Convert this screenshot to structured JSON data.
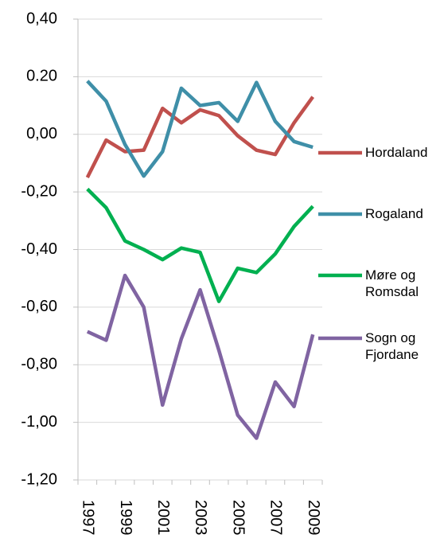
{
  "chart_data": {
    "type": "line",
    "categories": [
      "1997",
      null,
      "1999",
      null,
      "2001",
      null,
      "2003",
      null,
      "2005",
      null,
      "2007",
      null,
      "2009"
    ],
    "series": [
      {
        "name": "Hordaland",
        "color": "#c0504d",
        "values": [
          -0.15,
          -0.02,
          -0.06,
          -0.055,
          0.09,
          0.04,
          0.085,
          0.065,
          -0.005,
          -0.055,
          -0.07,
          0.04,
          0.13
        ]
      },
      {
        "name": "Rogaland",
        "color": "#3f8fa8",
        "values": [
          0.185,
          0.115,
          -0.035,
          -0.145,
          -0.06,
          0.16,
          0.1,
          0.11,
          0.045,
          0.18,
          0.045,
          -0.025,
          -0.045
        ]
      },
      {
        "name": "Møre og Romsdal",
        "color": "#00b050",
        "values": [
          -0.19,
          -0.255,
          -0.37,
          -0.4,
          -0.435,
          -0.395,
          -0.41,
          -0.58,
          -0.465,
          -0.48,
          -0.415,
          -0.32,
          -0.25
        ]
      },
      {
        "name": "Sogn og Fjordane",
        "color": "#8064a2",
        "values": [
          -0.685,
          -0.715,
          -0.49,
          -0.6,
          -0.94,
          -0.71,
          -0.54,
          -0.75,
          -0.975,
          -1.055,
          -0.86,
          -0.945,
          -0.695
        ]
      }
    ],
    "ylim": [
      -1.2,
      0.4
    ],
    "yticks": [
      {
        "value": 0.4,
        "label": "0,40"
      },
      {
        "value": 0.2,
        "label": "0.20"
      },
      {
        "value": 0,
        "label": "0,00"
      },
      {
        "value": -0.2,
        "label": "-0,20"
      },
      {
        "value": -0.4,
        "label": "-0,40"
      },
      {
        "value": -0.6,
        "label": "-0,60"
      },
      {
        "value": -0.8,
        "label": "-0,80"
      },
      {
        "value": -1,
        "label": "-1,00"
      },
      {
        "value": -1.2,
        "label": "-1,20"
      }
    ],
    "grid": true
  }
}
